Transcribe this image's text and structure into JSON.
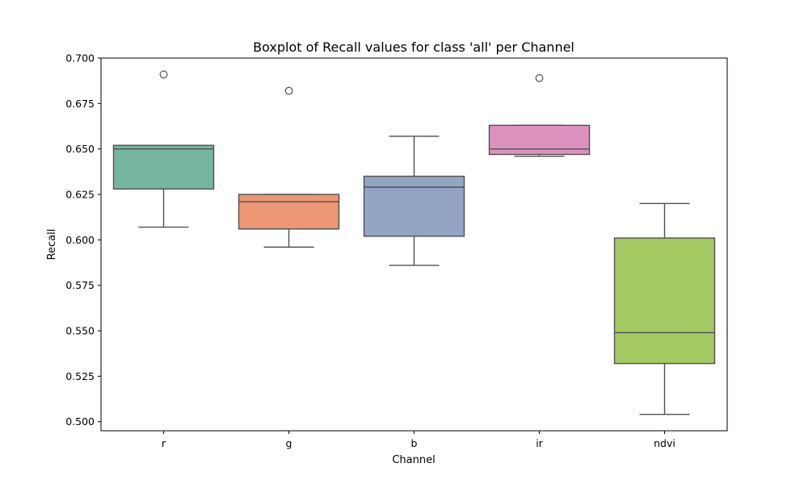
{
  "chart_data": {
    "type": "boxplot",
    "title": "Boxplot of Recall values for class 'all' per Channel",
    "xlabel": "Channel",
    "ylabel": "Recall",
    "ylim": [
      0.495,
      0.7
    ],
    "yticks": [
      "0.500",
      "0.525",
      "0.550",
      "0.575",
      "0.600",
      "0.625",
      "0.650",
      "0.675",
      "0.700"
    ],
    "grid": false,
    "categories": [
      "r",
      "g",
      "b",
      "ir",
      "ndvi"
    ],
    "boxes": [
      {
        "category": "r",
        "whisker_low": 0.607,
        "q1": 0.628,
        "median": 0.65,
        "q3": 0.652,
        "whisker_high": 0.652,
        "outliers": [
          0.691
        ],
        "color": "#76b69f"
      },
      {
        "category": "g",
        "whisker_low": 0.596,
        "q1": 0.606,
        "median": 0.621,
        "q3": 0.625,
        "whisker_high": 0.625,
        "outliers": [
          0.682
        ],
        "color": "#ec9673"
      },
      {
        "category": "b",
        "whisker_low": 0.586,
        "q1": 0.602,
        "median": 0.629,
        "q3": 0.635,
        "whisker_high": 0.657,
        "outliers": [],
        "color": "#93a4c5"
      },
      {
        "category": "ir",
        "whisker_low": 0.646,
        "q1": 0.647,
        "median": 0.65,
        "q3": 0.663,
        "whisker_high": 0.663,
        "outliers": [
          0.689
        ],
        "color": "#dc92bf"
      },
      {
        "category": "ndvi",
        "whisker_low": 0.504,
        "q1": 0.532,
        "median": 0.549,
        "q3": 0.601,
        "whisker_high": 0.62,
        "outliers": [],
        "color": "#a2c962"
      }
    ]
  }
}
